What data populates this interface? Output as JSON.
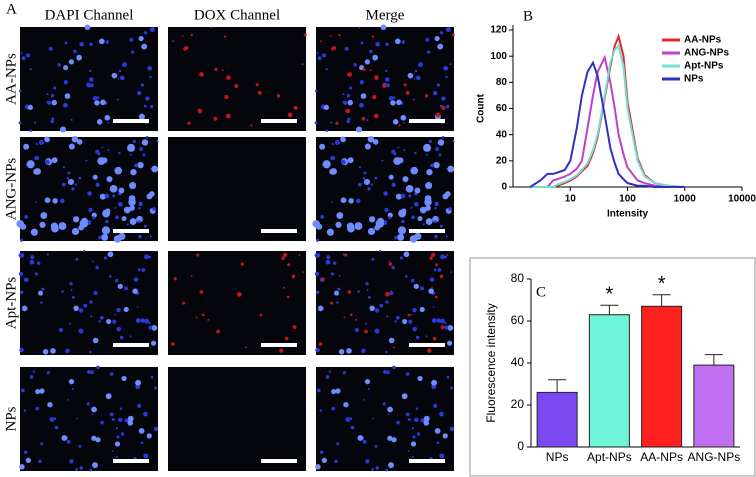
{
  "panel_a": {
    "label": "A",
    "columns": [
      "DAPI Channel",
      "DOX Channel",
      "Merge"
    ],
    "rows": [
      "AA-NPs",
      "ANG-NPs",
      "Apt-NPs",
      "NPs"
    ]
  },
  "chart_data": [
    {
      "type": "line",
      "label": "B",
      "xlabel": "Intensity",
      "ylabel": "Count",
      "log_x": true,
      "x": [
        2,
        3,
        4,
        5,
        6,
        8,
        10,
        13,
        16,
        20,
        25,
        30,
        40,
        50,
        60,
        70,
        85,
        100,
        150,
        200,
        300,
        500,
        1000
      ],
      "series": [
        {
          "name": "AA-NPs",
          "color": "#e8262a",
          "values": [
            0,
            0,
            0,
            0,
            1,
            3,
            5,
            8,
            12,
            16,
            26,
            38,
            68,
            92,
            108,
            115,
            100,
            65,
            22,
            9,
            3,
            1,
            0
          ]
        },
        {
          "name": "ANG-NPs",
          "color": "#c040c8",
          "values": [
            0,
            0,
            0,
            5,
            6,
            8,
            10,
            14,
            20,
            45,
            70,
            88,
            99,
            80,
            60,
            40,
            25,
            15,
            5,
            3,
            1,
            0,
            0
          ]
        },
        {
          "name": "Apt-NPs",
          "color": "#70e0d0",
          "values": [
            0,
            0,
            0,
            0,
            2,
            4,
            6,
            9,
            13,
            18,
            28,
            40,
            70,
            95,
            105,
            108,
            92,
            60,
            20,
            8,
            3,
            1,
            0
          ]
        },
        {
          "name": "NPs",
          "color": "#3030c0",
          "values": [
            0,
            5,
            10,
            10,
            11,
            13,
            20,
            45,
            70,
            88,
            95,
            85,
            55,
            30,
            18,
            10,
            6,
            3,
            1,
            1,
            0,
            0,
            0
          ]
        }
      ],
      "xlim": [
        1,
        10000
      ],
      "xticks": [
        10,
        100,
        1000,
        10000
      ],
      "ylim": [
        0,
        120
      ],
      "yticks": [
        0,
        20,
        40,
        60,
        80,
        100,
        120
      ],
      "legend": "top-right"
    },
    {
      "type": "bar",
      "label": "C",
      "ylabel": "Fluorescence intensity",
      "categories": [
        "NPs",
        "Apt-NPs",
        "AA-NPs",
        "ANG-NPs"
      ],
      "values": [
        26,
        63,
        67,
        39
      ],
      "errors": [
        6,
        4.5,
        5.5,
        5
      ],
      "colors": [
        "#7a4af0",
        "#6ff5d8",
        "#ff2020",
        "#c070f0"
      ],
      "annotations": [
        null,
        "*",
        "*",
        null
      ],
      "ylim": [
        0,
        80
      ],
      "yticks": [
        0,
        20,
        40,
        60,
        80
      ]
    }
  ]
}
